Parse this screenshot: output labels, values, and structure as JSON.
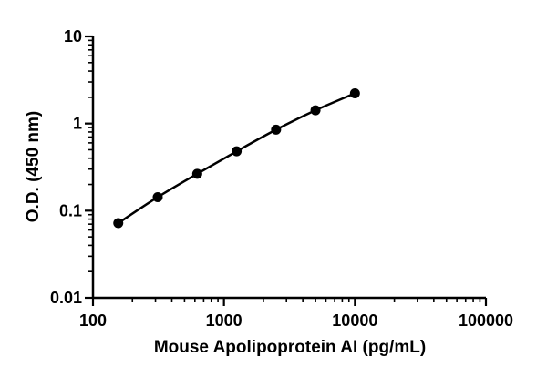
{
  "chart_data": {
    "type": "line",
    "title": "",
    "xlabel": "Mouse Apolipoprotein AI (pg/mL)",
    "ylabel": "O.D. (450 nm)",
    "xscale": "log",
    "yscale": "log",
    "xlim": [
      100,
      100000
    ],
    "ylim": [
      0.01,
      10
    ],
    "x_ticks": [
      "100",
      "1000",
      "10000",
      "100000"
    ],
    "y_ticks": [
      "0.01",
      "0.1",
      "1",
      "10"
    ],
    "grid": false,
    "legend": "none",
    "series": [
      {
        "name": "",
        "color": "#000000",
        "marker": "circle",
        "x": [
          156,
          312,
          625,
          1250,
          2500,
          5000,
          10000
        ],
        "y": [
          0.072,
          0.143,
          0.265,
          0.48,
          0.85,
          1.42,
          2.22
        ]
      }
    ]
  }
}
